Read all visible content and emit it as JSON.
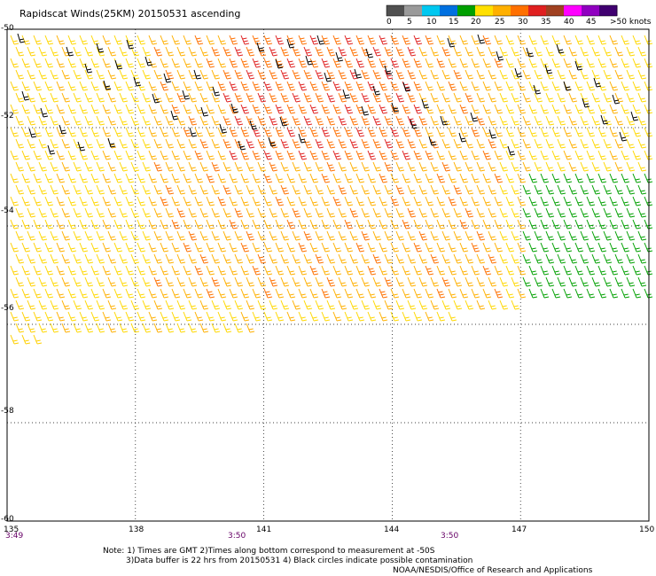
{
  "title": "Rapidscat Winds(25KM) 20150531 ascending",
  "legend": {
    "colors": [
      "#505050",
      "#9a9a9a",
      "#00c8f0",
      "#0070e0",
      "#00a000",
      "#ffe000",
      "#ffb000",
      "#ff7000",
      "#e02020",
      "#a04020",
      "#ff00ff",
      "#9000c0",
      "#400070"
    ],
    "labels": [
      "0",
      "5",
      "10",
      "15",
      "20",
      "25",
      "30",
      "35",
      "40",
      "45",
      ">50 knots"
    ]
  },
  "axes": {
    "x_ticks": [
      "135",
      "138",
      "141",
      "144",
      "147",
      "150"
    ],
    "y_ticks": [
      "-50",
      "-52",
      "-54",
      "-56",
      "-58",
      "-60"
    ]
  },
  "times": [
    "3:49",
    "3:50",
    "3:50"
  ],
  "notes": [
    "Note: 1) Times are GMT 2)Times along bottom correspond to measurement at -50S",
    "3)Data buffer is 22 hrs from 20150531 4) Black circles indicate possible contamination",
    "NOAA/NESDIS/Office of Research and Applications"
  ],
  "chart_data": {
    "type": "wind_barb_map",
    "xlim": [
      135,
      150
    ],
    "ylim": [
      -60,
      -50
    ],
    "swath": {
      "lon_min": 135,
      "lon_max": 150,
      "lat_top": -50,
      "lat_bottom": -56.8
    },
    "speed_zones": [
      {
        "region": "west edge",
        "knots": "20-25"
      },
      {
        "region": "central north",
        "knots": "25-35"
      },
      {
        "region": "east south",
        "knots": "15-20"
      }
    ]
  }
}
